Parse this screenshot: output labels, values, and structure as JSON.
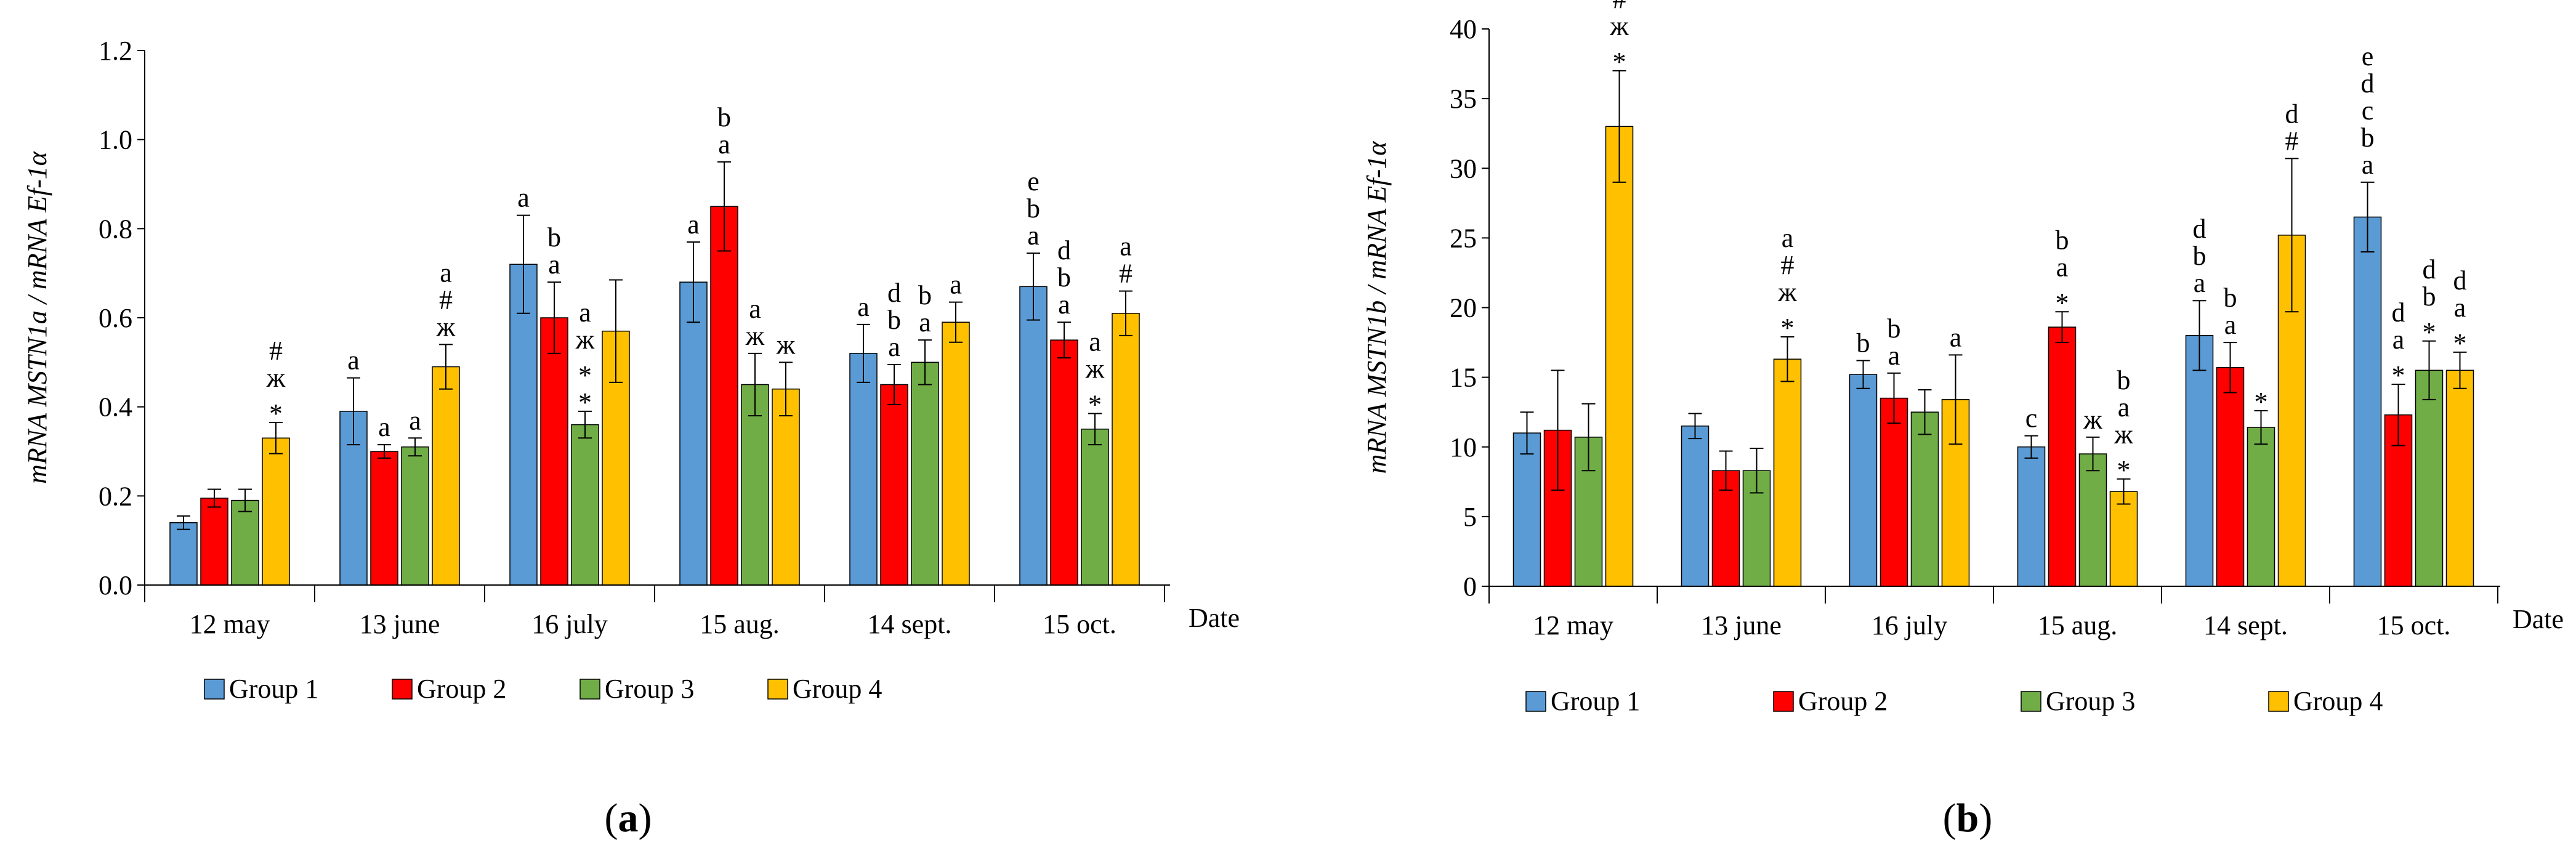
{
  "colors": {
    "Group 1": "#5B9BD5",
    "Group 2": "#FF0000",
    "Group 3": "#70AD47",
    "Group 4": "#FFC000",
    "axis": "#000000",
    "bar_edge": "#000000"
  },
  "chart_data": [
    {
      "type": "bar",
      "panel_label_prefix": "(",
      "panel_label_letter": "a",
      "panel_label_suffix": ")",
      "ylabel": "mRNA MSTN1a / mRNA Ef-1α",
      "xlabel": "Date",
      "ylim": [
        0,
        1.2
      ],
      "yticks": [
        "0.0",
        "0.2",
        "0.4",
        "0.6",
        "0.8",
        "1.0",
        "1.2"
      ],
      "legend_position": "bottom",
      "categories": [
        "12 may",
        "13 june",
        "16 july",
        "15 aug.",
        "14 sept.",
        "15 oct."
      ],
      "series": [
        {
          "name": "Group 1",
          "values": [
            0.14,
            0.39,
            0.72,
            0.68,
            0.52,
            0.67
          ],
          "errors": [
            0.015,
            0.075,
            0.11,
            0.09,
            0.065,
            0.075
          ]
        },
        {
          "name": "Group 2",
          "values": [
            0.195,
            0.3,
            0.6,
            0.85,
            0.45,
            0.55
          ],
          "errors": [
            0.02,
            0.015,
            0.08,
            0.1,
            0.045,
            0.04
          ]
        },
        {
          "name": "Group 3",
          "values": [
            0.19,
            0.31,
            0.36,
            0.45,
            0.5,
            0.35
          ],
          "errors": [
            0.025,
            0.02,
            0.03,
            0.07,
            0.05,
            0.035
          ]
        },
        {
          "name": "Group 4",
          "values": [
            0.33,
            0.49,
            0.57,
            0.44,
            0.59,
            0.61
          ],
          "errors": [
            0.035,
            0.05,
            0.115,
            0.06,
            0.045,
            0.05
          ]
        }
      ],
      "annotations": [
        [
          [],
          [],
          [],
          [
            "*",
            "ж",
            "#"
          ]
        ],
        [
          [
            "a"
          ],
          [
            "a"
          ],
          [
            "a"
          ],
          [
            "ж",
            "#",
            "a"
          ]
        ],
        [
          [
            "a"
          ],
          [
            "a",
            "b"
          ],
          [
            "*",
            "*",
            "ж",
            "a"
          ],
          []
        ],
        [
          [
            "a"
          ],
          [
            "a",
            "b"
          ],
          [
            "ж",
            "a"
          ],
          [
            "ж"
          ]
        ],
        [
          [
            "a"
          ],
          [
            "a",
            "b",
            "d"
          ],
          [
            "a",
            "b"
          ],
          [
            "a"
          ]
        ],
        [
          [
            "a",
            "b",
            "e"
          ],
          [
            "a",
            "b",
            "d"
          ],
          [
            "*",
            "ж",
            "a"
          ],
          [
            "#",
            "a"
          ]
        ]
      ]
    },
    {
      "type": "bar",
      "panel_label_prefix": "(",
      "panel_label_letter": "b",
      "panel_label_suffix": ")",
      "ylabel": "mRNA MSTN1b / mRNA Ef-1α",
      "xlabel": "Date",
      "ylim": [
        0,
        40
      ],
      "yticks": [
        "0",
        "5",
        "10",
        "15",
        "20",
        "25",
        "30",
        "35",
        "40"
      ],
      "legend_position": "bottom",
      "categories": [
        "12 may",
        "13 june",
        "16 july",
        "15 aug.",
        "14 sept.",
        "15 oct."
      ],
      "series": [
        {
          "name": "Group 1",
          "values": [
            11.0,
            11.5,
            15.2,
            10.0,
            18.0,
            26.5
          ],
          "errors": [
            1.5,
            0.9,
            1.0,
            0.8,
            2.5,
            2.5
          ]
        },
        {
          "name": "Group 2",
          "values": [
            11.2,
            8.3,
            13.5,
            18.6,
            15.7,
            12.3
          ],
          "errors": [
            4.3,
            1.4,
            1.8,
            1.1,
            1.8,
            2.2
          ]
        },
        {
          "name": "Group 3",
          "values": [
            10.7,
            8.3,
            12.5,
            9.5,
            11.4,
            15.5
          ],
          "errors": [
            2.4,
            1.6,
            1.6,
            1.2,
            1.2,
            2.1
          ]
        },
        {
          "name": "Group 4",
          "values": [
            33.0,
            16.3,
            13.4,
            6.8,
            25.2,
            15.5
          ],
          "errors": [
            4.0,
            1.6,
            3.2,
            0.9,
            5.5,
            1.3
          ]
        }
      ],
      "annotations": [
        [
          [],
          [],
          [],
          [
            "*",
            "ж",
            "#"
          ]
        ],
        [
          [],
          [],
          [],
          [
            "*",
            "ж",
            "#",
            "a"
          ]
        ],
        [
          [
            "b"
          ],
          [
            "a",
            "b"
          ],
          [],
          [
            "a"
          ]
        ],
        [
          [
            "c"
          ],
          [
            "*",
            "a",
            "b"
          ],
          [
            "ж"
          ],
          [
            "*",
            "ж",
            "a",
            "b"
          ]
        ],
        [
          [
            "a",
            "b",
            "d"
          ],
          [
            "a",
            "b"
          ],
          [
            "*"
          ],
          [
            "#",
            "d"
          ]
        ],
        [
          [
            "a",
            "b",
            "c",
            "d",
            "e"
          ],
          [
            "*",
            "a",
            "d"
          ],
          [
            "*",
            "b",
            "d"
          ],
          [
            "*",
            "a",
            "d"
          ]
        ]
      ]
    }
  ]
}
